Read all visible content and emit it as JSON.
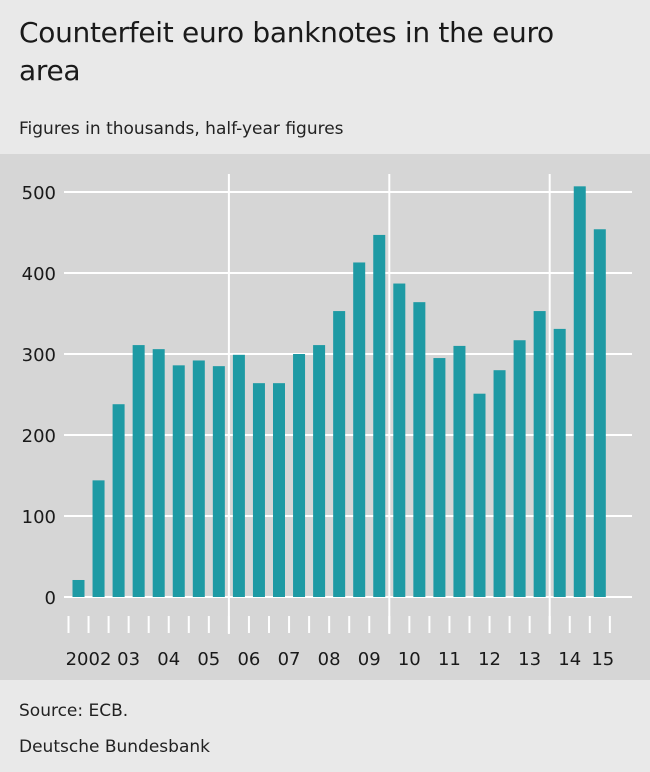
{
  "header": {
    "title": "Counterfeit euro banknotes in the euro area",
    "subtitle": "Figures in thousands, half-year figures"
  },
  "footer": {
    "source": "Source: ECB.",
    "publisher": "Deutsche Bundesbank"
  },
  "chart_data": {
    "type": "bar",
    "title": "Counterfeit euro banknotes in the euro area",
    "subtitle": "Figures in thousands, half-year figures",
    "xlabel": "",
    "ylabel": "",
    "ylim": [
      0,
      500
    ],
    "yticks": [
      0,
      100,
      200,
      300,
      400,
      500
    ],
    "grid": true,
    "bar_color": "#1e9aa4",
    "year_labels": [
      "2002",
      "03",
      "04",
      "05",
      "06",
      "07",
      "08",
      "09",
      "10",
      "11",
      "12",
      "13",
      "14",
      "15"
    ],
    "categories": [
      "2002 H1",
      "2002 H2",
      "2003 H1",
      "2003 H2",
      "2004 H1",
      "2004 H2",
      "2005 H1",
      "2005 H2",
      "2006 H1",
      "2006 H2",
      "2007 H1",
      "2007 H2",
      "2008 H1",
      "2008 H2",
      "2009 H1",
      "2009 H2",
      "2010 H1",
      "2010 H2",
      "2011 H1",
      "2011 H2",
      "2012 H1",
      "2012 H2",
      "2013 H1",
      "2013 H2",
      "2014 H1",
      "2014 H2",
      "2015 H1"
    ],
    "values": [
      21,
      144,
      238,
      311,
      306,
      286,
      292,
      285,
      299,
      264,
      264,
      300,
      311,
      353,
      413,
      447,
      387,
      364,
      295,
      310,
      251,
      280,
      317,
      353,
      331,
      507,
      454
    ]
  }
}
